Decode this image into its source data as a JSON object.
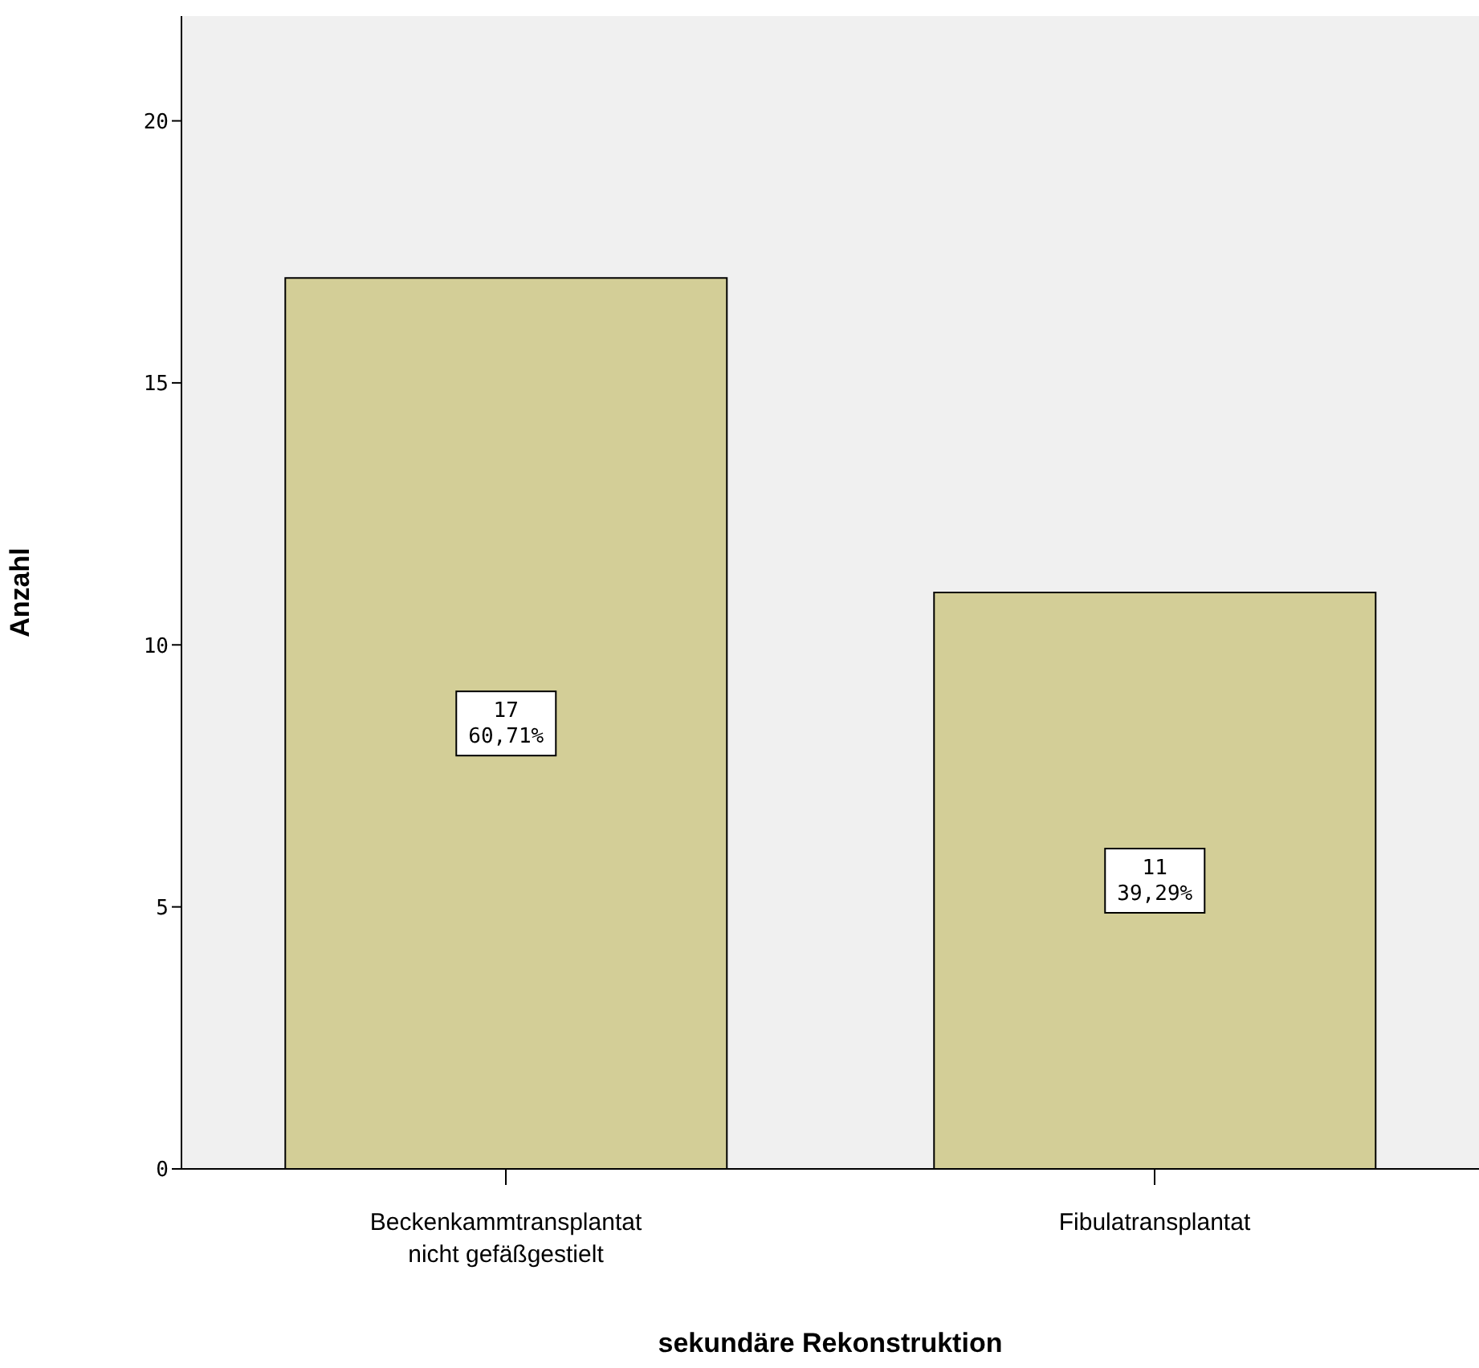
{
  "chart_data": {
    "type": "bar",
    "xlabel": "sekundäre Rekonstruktion",
    "ylabel": "Anzahl",
    "categories": [
      "Beckenkammtransplantat nicht gefäßgestielt",
      "Fibulatransplantat"
    ],
    "values": [
      17,
      11
    ],
    "color": "#d3ce97",
    "value_labels": [
      "17\n60,71%",
      "11\n39,29%"
    ],
    "ylim": [
      0,
      22
    ],
    "yticks": [
      0,
      5,
      10,
      15,
      20
    ]
  }
}
